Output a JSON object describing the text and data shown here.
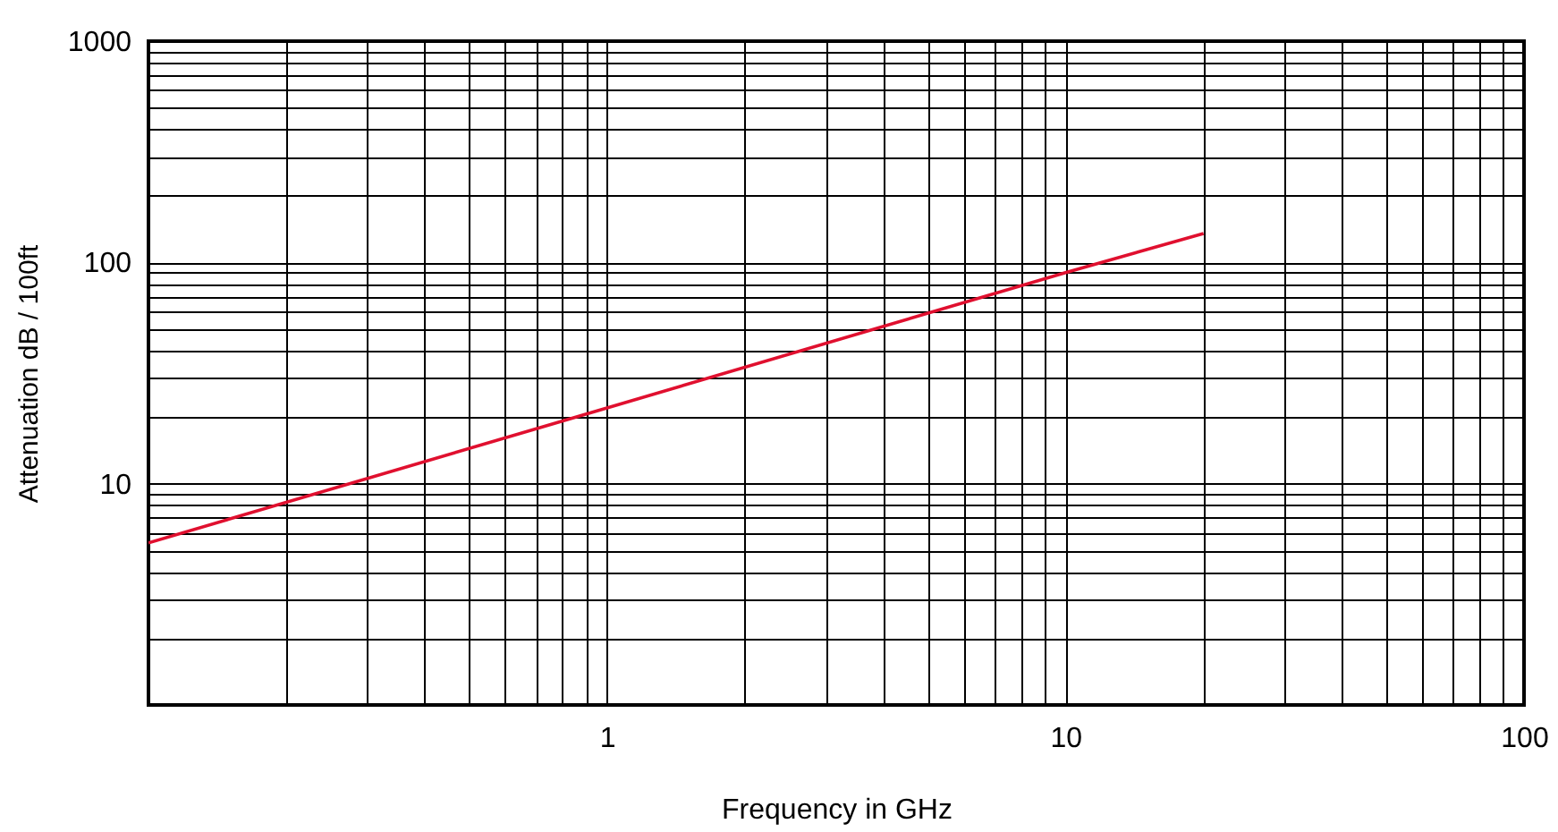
{
  "chart_data": {
    "type": "line",
    "xlabel": "Frequency in GHz",
    "ylabel": "Attenuation dB / 100ft",
    "x": [
      0.1,
      1,
      10,
      20
    ],
    "series": [
      {
        "color": "#e0102f",
        "values": [
          5.4,
          22,
          90,
          135
        ]
      }
    ],
    "log": "xy",
    "xlim": [
      0.1,
      100
    ],
    "ylim": [
      1,
      1000
    ],
    "xticks": [
      {
        "value": 0.1,
        "label": null
      },
      {
        "value": 0.2,
        "label": null
      },
      {
        "value": 0.3,
        "label": null
      },
      {
        "value": 0.4,
        "label": null
      },
      {
        "value": 0.5,
        "label": null
      },
      {
        "value": 0.6,
        "label": null
      },
      {
        "value": 0.7,
        "label": null
      },
      {
        "value": 0.8,
        "label": null
      },
      {
        "value": 0.9,
        "label": null
      },
      1,
      {
        "value": 2,
        "label": null
      },
      {
        "value": 3,
        "label": null
      },
      {
        "value": 4,
        "label": null
      },
      {
        "value": 5,
        "label": null
      },
      {
        "value": 6,
        "label": null
      },
      {
        "value": 7,
        "label": null
      },
      {
        "value": 8,
        "label": null
      },
      {
        "value": 9,
        "label": null
      },
      10,
      {
        "value": 20,
        "label": null
      },
      {
        "value": 30,
        "label": null
      },
      {
        "value": 40,
        "label": null
      },
      {
        "value": 50,
        "label": null
      },
      {
        "value": 60,
        "label": null
      },
      {
        "value": 70,
        "label": null
      },
      {
        "value": 80,
        "label": null
      },
      {
        "value": 90,
        "label": null
      },
      100
    ],
    "yticks": [
      {
        "value": 1,
        "label": null
      },
      {
        "value": 2,
        "label": null
      },
      {
        "value": 3,
        "label": null
      },
      {
        "value": 4,
        "label": null
      },
      {
        "value": 5,
        "label": null
      },
      {
        "value": 6,
        "label": null
      },
      {
        "value": 7,
        "label": null
      },
      {
        "value": 8,
        "label": null
      },
      {
        "value": 9,
        "label": null
      },
      10,
      {
        "value": 20,
        "label": null
      },
      {
        "value": 30,
        "label": null
      },
      {
        "value": 40,
        "label": null
      },
      {
        "value": 50,
        "label": null
      },
      {
        "value": 60,
        "label": null
      },
      {
        "value": 70,
        "label": null
      },
      {
        "value": 80,
        "label": null
      },
      {
        "value": 90,
        "label": null
      },
      100,
      {
        "value": 200,
        "label": null
      },
      {
        "value": 300,
        "label": null
      },
      {
        "value": 400,
        "label": null
      },
      {
        "value": 500,
        "label": null
      },
      {
        "value": 600,
        "label": null
      },
      {
        "value": 700,
        "label": null
      },
      {
        "value": 800,
        "label": null
      },
      {
        "value": 900,
        "label": null
      },
      1000
    ],
    "grid": true,
    "marker": "none",
    "line_style": "solid"
  }
}
